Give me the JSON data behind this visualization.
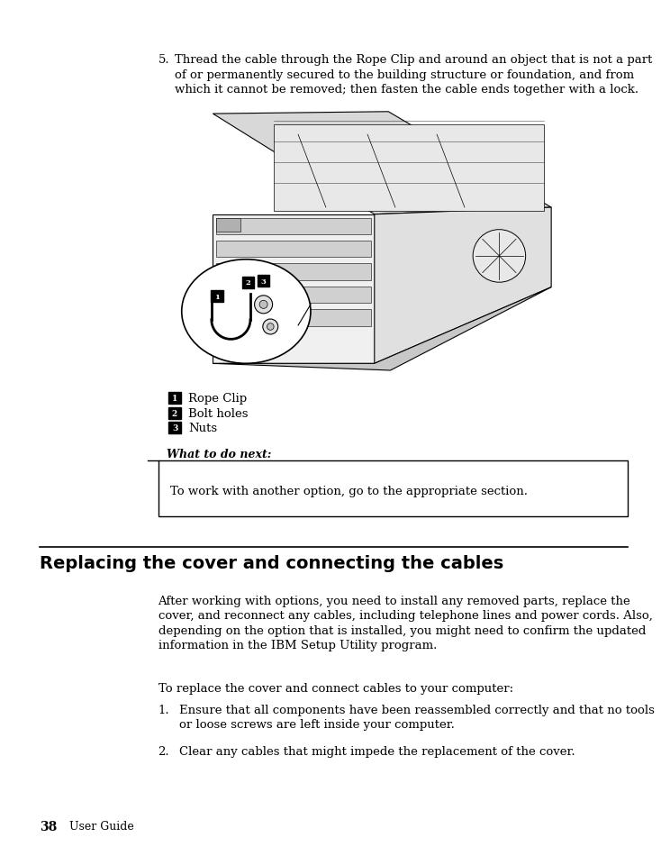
{
  "background_color": "#ffffff",
  "page_width": 9.54,
  "page_height": 12.35,
  "step5_num": "5.",
  "step5_text_line1": "Thread the cable through the Rope Clip and around an object that is not a part",
  "step5_text_line2": "of or permanently secured to the building structure or foundation, and from",
  "step5_text_line3": "which it cannot be removed; then fasten the cable ends together with a lock.",
  "legend_items": [
    {
      "num": "1",
      "label": "Rope Clip"
    },
    {
      "num": "2",
      "label": "Bolt holes"
    },
    {
      "num": "3",
      "label": "Nuts"
    }
  ],
  "whatnext_title": "What to do next:",
  "whatnext_body": "To work with another option, go to the appropriate section.",
  "section_title": "Replacing the cover and connecting the cables",
  "body_para1_line1": "After working with options, you need to install any removed parts, replace the",
  "body_para1_line2": "cover, and reconnect any cables, including telephone lines and power cords. Also,",
  "body_para1_line3": "depending on the option that is installed, you might need to confirm the updated",
  "body_para1_line4": "information in the IBM Setup Utility program.",
  "body_para2": "To replace the cover and connect cables to your computer:",
  "body_item1_line1": "Ensure that all components have been reassembled correctly and that no tools",
  "body_item1_line2": "or loose screws are left inside your computer.",
  "body_item2": "Clear any cables that might impede the replacement of the cover.",
  "footer_page": "38",
  "footer_text": "User Guide"
}
